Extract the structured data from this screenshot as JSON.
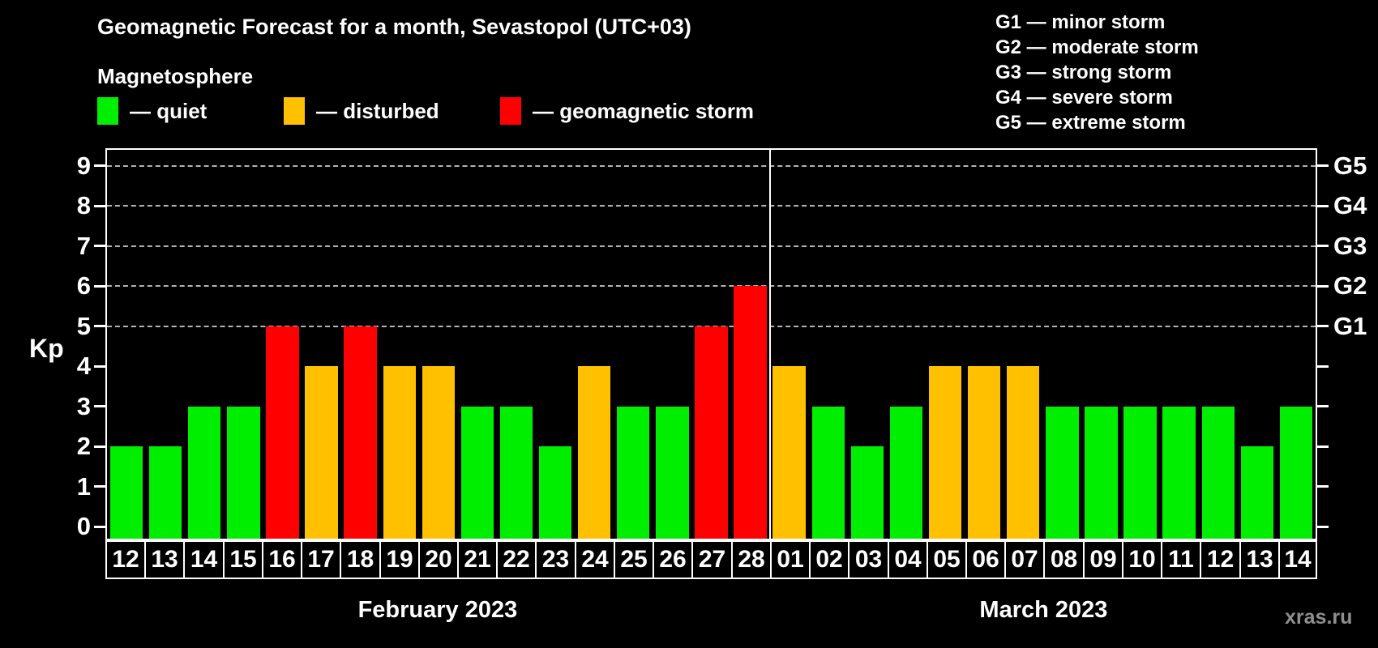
{
  "title": "Geomagnetic Forecast for a month, Sevastopol (UTC+03)",
  "subtitle": "Magnetosphere",
  "legend": {
    "items": [
      {
        "state": "quiet",
        "label": "— quiet",
        "color": "#00ee00"
      },
      {
        "state": "disturbed",
        "label": "— disturbed",
        "color": "#ffc000"
      },
      {
        "state": "storm",
        "label": "— geomagnetic storm",
        "color": "#ff0000"
      }
    ]
  },
  "storm_legend": [
    "G1 — minor storm",
    "G2 — moderate storm",
    "G3 — strong storm",
    "G4 — severe storm",
    "G5 — extreme storm"
  ],
  "watermark": "xras.ru",
  "chart_data": {
    "type": "bar",
    "ylabel": "Kp",
    "ylim": [
      -0.3,
      9.4
    ],
    "yticks": [
      0,
      1,
      2,
      3,
      4,
      5,
      6,
      7,
      8,
      9
    ],
    "gridlines_at_kp": [
      5,
      6,
      7,
      8,
      9
    ],
    "right_axis": [
      {
        "kp": 5,
        "label": "G1"
      },
      {
        "kp": 6,
        "label": "G2"
      },
      {
        "kp": 7,
        "label": "G3"
      },
      {
        "kp": 8,
        "label": "G4"
      },
      {
        "kp": 9,
        "label": "G5"
      }
    ],
    "colors": {
      "quiet": "#00ee00",
      "disturbed": "#ffc000",
      "storm": "#ff0000"
    },
    "months": [
      {
        "label": "February 2023",
        "days": [
          {
            "day": "12",
            "kp": 2,
            "state": "quiet"
          },
          {
            "day": "13",
            "kp": 2,
            "state": "quiet"
          },
          {
            "day": "14",
            "kp": 3,
            "state": "quiet"
          },
          {
            "day": "15",
            "kp": 3,
            "state": "quiet"
          },
          {
            "day": "16",
            "kp": 5,
            "state": "storm"
          },
          {
            "day": "17",
            "kp": 4,
            "state": "disturbed"
          },
          {
            "day": "18",
            "kp": 5,
            "state": "storm"
          },
          {
            "day": "19",
            "kp": 4,
            "state": "disturbed"
          },
          {
            "day": "20",
            "kp": 4,
            "state": "disturbed"
          },
          {
            "day": "21",
            "kp": 3,
            "state": "quiet"
          },
          {
            "day": "22",
            "kp": 3,
            "state": "quiet"
          },
          {
            "day": "23",
            "kp": 2,
            "state": "quiet"
          },
          {
            "day": "24",
            "kp": 4,
            "state": "disturbed"
          },
          {
            "day": "25",
            "kp": 3,
            "state": "quiet"
          },
          {
            "day": "26",
            "kp": 3,
            "state": "quiet"
          },
          {
            "day": "27",
            "kp": 5,
            "state": "storm"
          },
          {
            "day": "28",
            "kp": 6,
            "state": "storm"
          }
        ]
      },
      {
        "label": "March 2023",
        "days": [
          {
            "day": "01",
            "kp": 4,
            "state": "disturbed"
          },
          {
            "day": "02",
            "kp": 3,
            "state": "quiet"
          },
          {
            "day": "03",
            "kp": 2,
            "state": "quiet"
          },
          {
            "day": "04",
            "kp": 3,
            "state": "quiet"
          },
          {
            "day": "05",
            "kp": 4,
            "state": "disturbed"
          },
          {
            "day": "06",
            "kp": 4,
            "state": "disturbed"
          },
          {
            "day": "07",
            "kp": 4,
            "state": "disturbed"
          },
          {
            "day": "08",
            "kp": 3,
            "state": "quiet"
          },
          {
            "day": "09",
            "kp": 3,
            "state": "quiet"
          },
          {
            "day": "10",
            "kp": 3,
            "state": "quiet"
          },
          {
            "day": "11",
            "kp": 3,
            "state": "quiet"
          },
          {
            "day": "12",
            "kp": 3,
            "state": "quiet"
          },
          {
            "day": "13",
            "kp": 2,
            "state": "quiet"
          },
          {
            "day": "14",
            "kp": 3,
            "state": "quiet"
          }
        ]
      }
    ]
  }
}
